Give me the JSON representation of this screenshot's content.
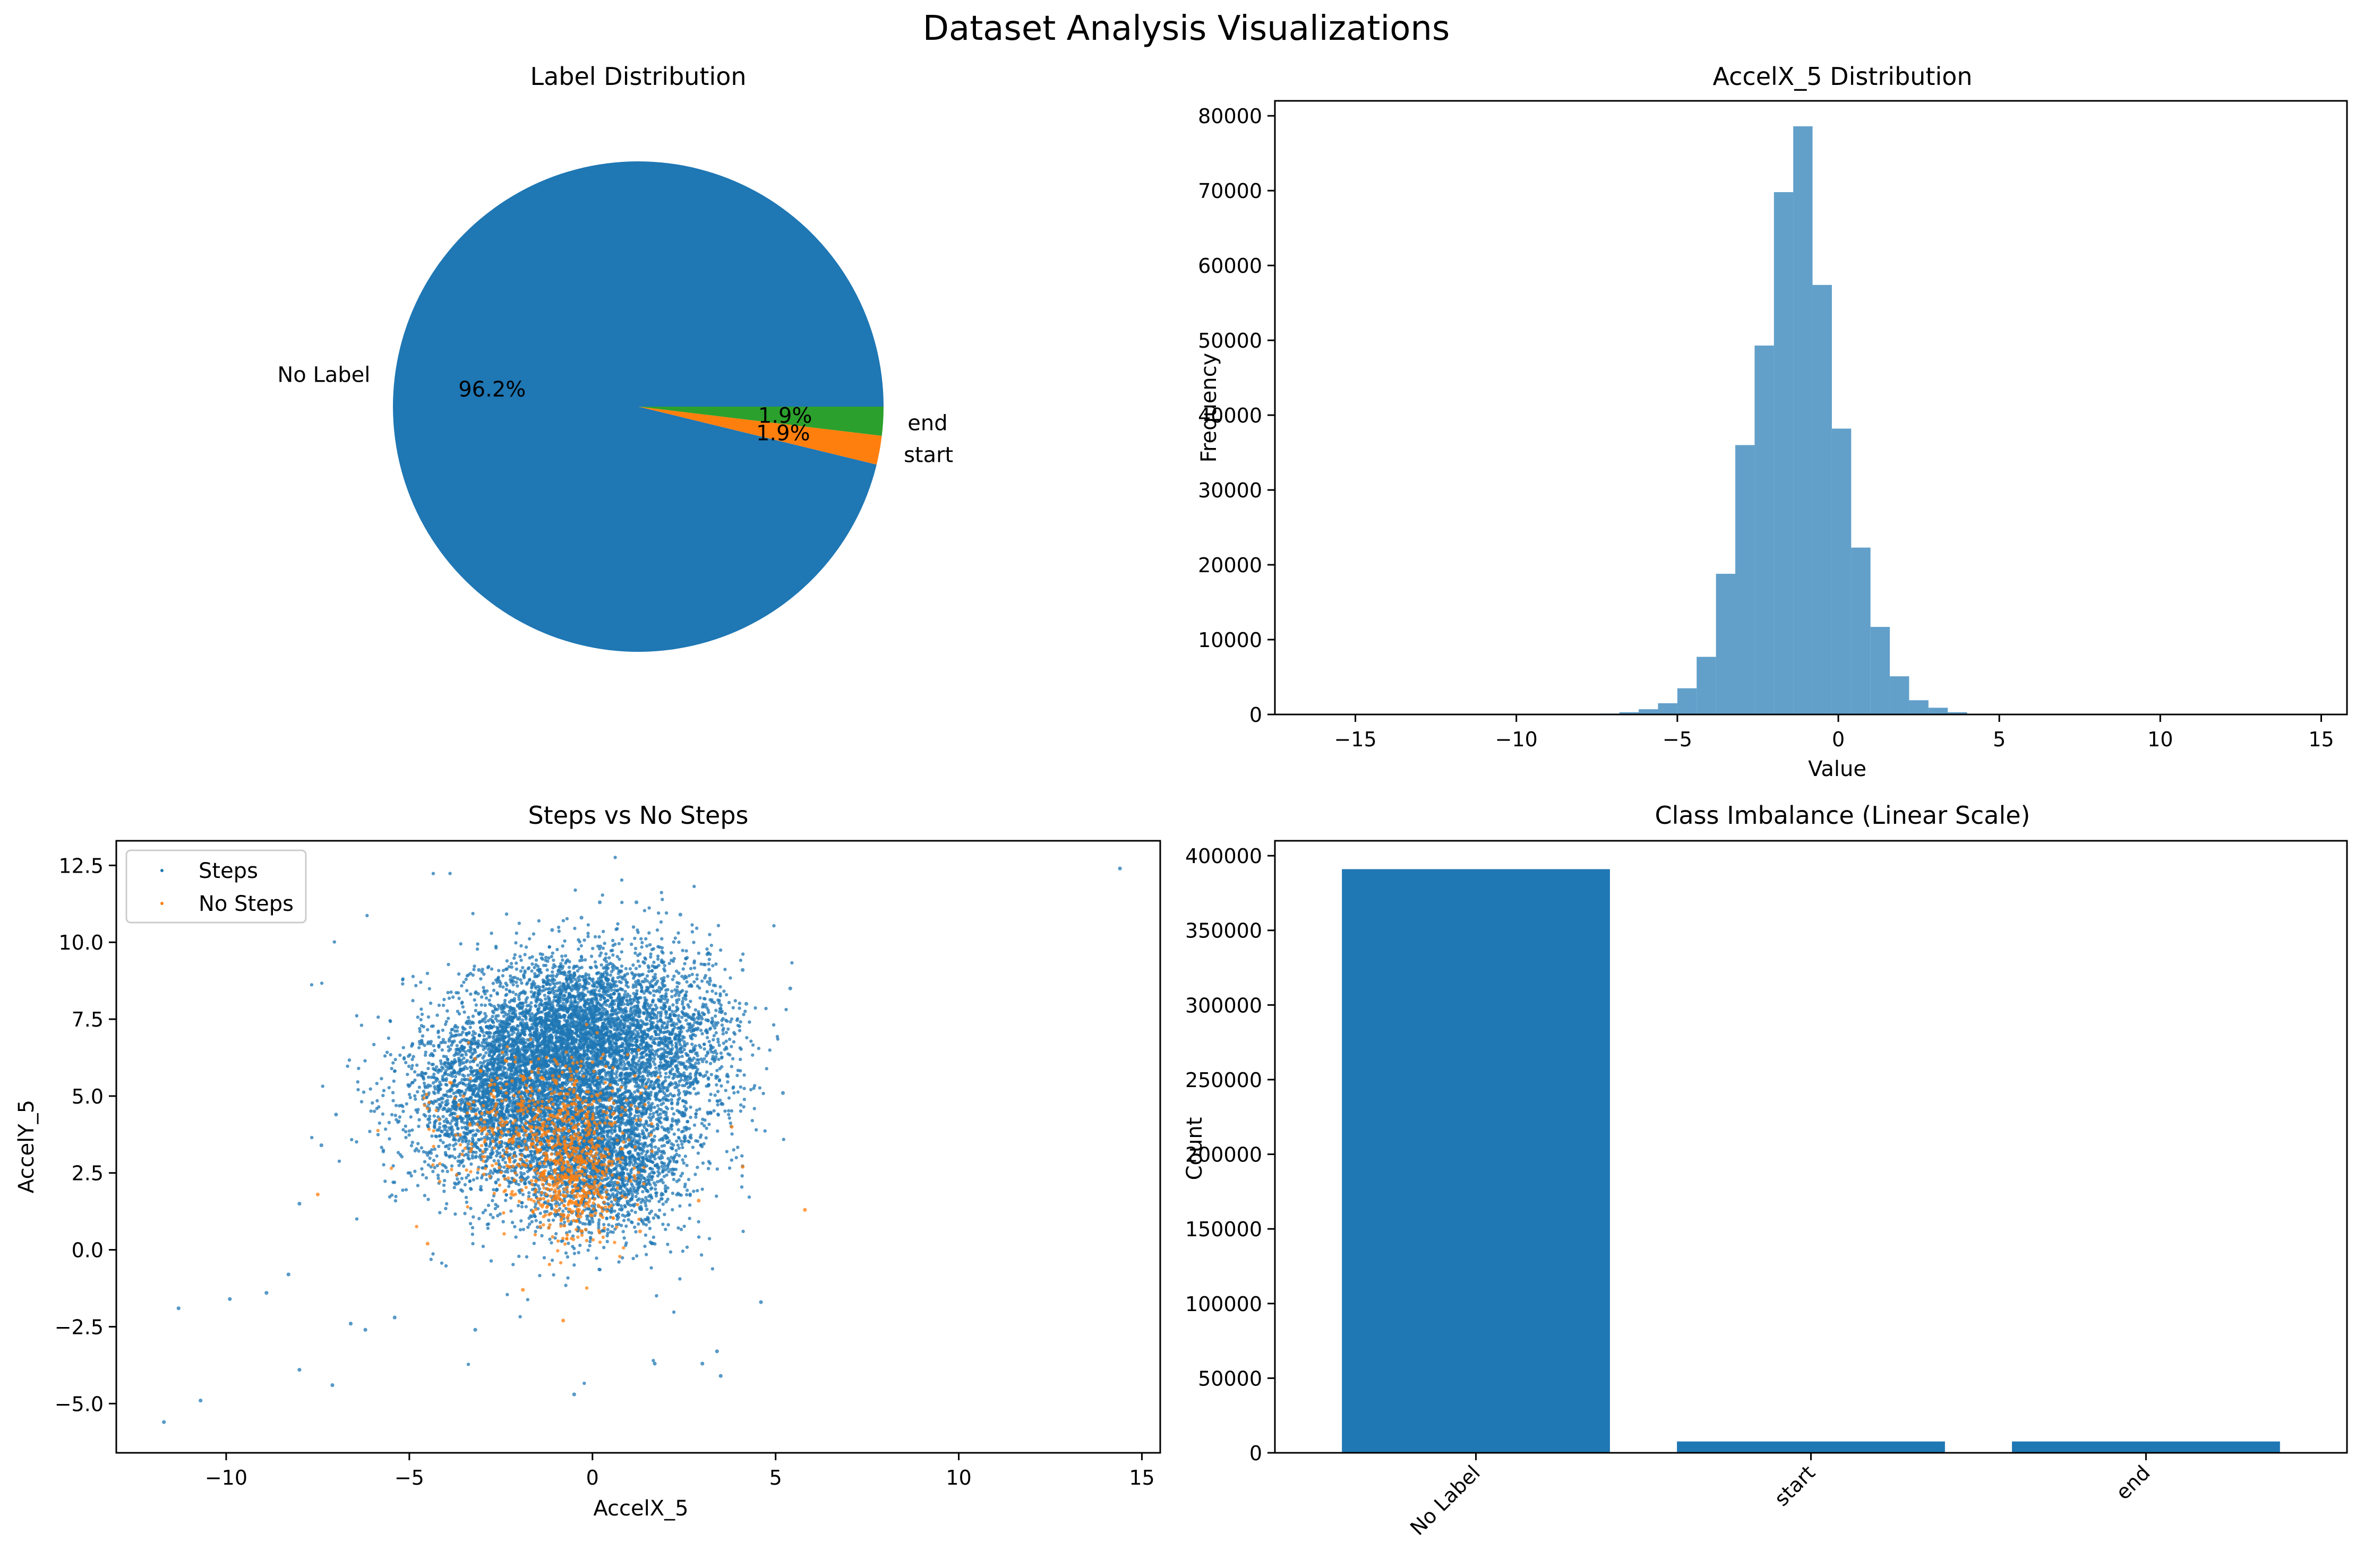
{
  "figure": {
    "suptitle": "Dataset Analysis Visualizations"
  },
  "chart_data": [
    {
      "type": "pie",
      "title": "Label Distribution",
      "labels": [
        "No Label",
        "start",
        "end"
      ],
      "values": [
        96.2,
        1.9,
        1.9
      ],
      "pct_labels": [
        "96.2%",
        "1.9%",
        "1.9%"
      ],
      "colors": [
        "#1f77b4",
        "#ff7f0e",
        "#2ca02c"
      ]
    },
    {
      "type": "histogram",
      "title": "AccelX_5 Distribution",
      "xlabel": "Value",
      "ylabel": "Frequency",
      "xlim": [
        -17.5,
        15.8
      ],
      "ylim": [
        0,
        82000
      ],
      "xticks": [
        -15,
        -10,
        -5,
        0,
        5,
        10,
        15
      ],
      "xtick_labels": [
        "−15",
        "−10",
        "−5",
        "0",
        "5",
        "10",
        "15"
      ],
      "yticks": [
        0,
        10000,
        20000,
        30000,
        40000,
        50000,
        60000,
        70000,
        80000
      ],
      "ytick_labels": [
        "0",
        "10000",
        "20000",
        "30000",
        "40000",
        "50000",
        "60000",
        "70000",
        "80000"
      ],
      "color": "#1f77b4",
      "bins": [
        {
          "x0": -8.0,
          "x1": -7.4,
          "count": 50
        },
        {
          "x0": -7.4,
          "x1": -6.8,
          "count": 120
        },
        {
          "x0": -6.8,
          "x1": -6.2,
          "count": 300
        },
        {
          "x0": -6.2,
          "x1": -5.6,
          "count": 700
        },
        {
          "x0": -5.6,
          "x1": -5.0,
          "count": 1500
        },
        {
          "x0": -5.0,
          "x1": -4.4,
          "count": 3500
        },
        {
          "x0": -4.4,
          "x1": -3.8,
          "count": 7700
        },
        {
          "x0": -3.8,
          "x1": -3.2,
          "count": 18800
        },
        {
          "x0": -3.2,
          "x1": -2.6,
          "count": 36000
        },
        {
          "x0": -2.6,
          "x1": -2.0,
          "count": 49300
        },
        {
          "x0": -2.0,
          "x1": -1.4,
          "count": 69800
        },
        {
          "x0": -1.4,
          "x1": -0.8,
          "count": 78600
        },
        {
          "x0": -0.8,
          "x1": -0.2,
          "count": 57400
        },
        {
          "x0": -0.2,
          "x1": 0.4,
          "count": 38200
        },
        {
          "x0": 0.4,
          "x1": 1.0,
          "count": 22300
        },
        {
          "x0": 1.0,
          "x1": 1.6,
          "count": 11700
        },
        {
          "x0": 1.6,
          "x1": 2.2,
          "count": 5100
        },
        {
          "x0": 2.2,
          "x1": 2.8,
          "count": 1900
        },
        {
          "x0": 2.8,
          "x1": 3.4,
          "count": 900
        },
        {
          "x0": 3.4,
          "x1": 4.0,
          "count": 300
        },
        {
          "x0": 4.0,
          "x1": 4.6,
          "count": 100
        }
      ]
    },
    {
      "type": "scatter",
      "title": "Steps vs No Steps",
      "xlabel": "AccelX_5",
      "ylabel": "AccelY_5",
      "xlim": [
        -13.0,
        15.5
      ],
      "ylim": [
        -6.6,
        13.3
      ],
      "xticks": [
        -10,
        -5,
        0,
        5,
        10,
        15
      ],
      "xtick_labels": [
        "−10",
        "−5",
        "0",
        "5",
        "10",
        "15"
      ],
      "yticks": [
        -5.0,
        -2.5,
        0.0,
        2.5,
        5.0,
        7.5,
        10.0,
        12.5
      ],
      "ytick_labels": [
        "−5.0",
        "−2.5",
        "0.0",
        "2.5",
        "5.0",
        "7.5",
        "10.0",
        "12.5"
      ],
      "legend_position": "top-left",
      "series": [
        {
          "name": "Steps",
          "color": "#1f77b4",
          "points": [
            [
              14.4,
              12.4
            ],
            [
              -11.7,
              -5.6
            ],
            [
              -10.7,
              -4.9
            ],
            [
              -11.3,
              -1.9
            ],
            [
              -9.9,
              -1.6
            ],
            [
              -8.9,
              -1.4
            ],
            [
              -8.3,
              -0.8
            ],
            [
              -8.0,
              -3.9
            ],
            [
              -7.1,
              -4.4
            ],
            [
              -8.0,
              1.5
            ],
            [
              -7.4,
              3.4
            ],
            [
              -7.0,
              4.4
            ],
            [
              -6.6,
              -2.4
            ],
            [
              -6.2,
              -2.6
            ],
            [
              -5.4,
              -2.2
            ],
            [
              3.0,
              -3.7
            ],
            [
              3.5,
              -4.1
            ],
            [
              3.4,
              -3.3
            ],
            [
              1.7,
              -3.7
            ],
            [
              -3.2,
              -2.6
            ],
            [
              -0.5,
              -4.7
            ],
            [
              4.6,
              -1.7
            ],
            [
              5.2,
              5.1
            ],
            [
              5.4,
              8.5
            ],
            [
              4.2,
              8.0
            ],
            [
              4.1,
              9.1
            ],
            [
              -3.1,
              9.1
            ],
            [
              -0.3,
              10.8
            ],
            [
              0.2,
              11.3
            ],
            [
              1.2,
              11.3
            ],
            [
              2.4,
              10.9
            ],
            [
              -1.1,
              10.4
            ]
          ],
          "cloud": [
            {
              "cx": -0.6,
              "cy": 7.0,
              "sx": 1.3,
              "sy": 1.2,
              "n": 3200
            },
            {
              "cx": -2.4,
              "cy": 4.8,
              "sx": 1.25,
              "sy": 1.3,
              "n": 2400
            },
            {
              "cx": 0.3,
              "cy": 3.1,
              "sx": 1.1,
              "sy": 1.3,
              "n": 2200
            },
            {
              "cx": 1.9,
              "cy": 6.6,
              "sx": 1.1,
              "sy": 1.6,
              "n": 1400
            },
            {
              "cx": -1.1,
              "cy": 5.2,
              "sx": 2.1,
              "sy": 2.4,
              "n": 1100
            }
          ]
        },
        {
          "name": "No Steps",
          "color": "#ff7f0e",
          "points": [
            [
              5.8,
              1.3
            ],
            [
              4.1,
              2.7
            ],
            [
              3.8,
              4.0
            ],
            [
              -7.5,
              1.8
            ],
            [
              -4.5,
              0.2
            ],
            [
              -1.9,
              -1.3
            ],
            [
              -0.8,
              -2.3
            ],
            [
              1.3,
              0.6
            ],
            [
              2.9,
              1.6
            ]
          ],
          "cloud": [
            {
              "cx": -0.5,
              "cy": 2.5,
              "sx": 0.75,
              "sy": 1.1,
              "n": 550
            },
            {
              "cx": -2.0,
              "cy": 3.8,
              "sx": 1.1,
              "sy": 1.1,
              "n": 300
            },
            {
              "cx": -0.7,
              "cy": 4.9,
              "sx": 0.9,
              "sy": 0.9,
              "n": 130
            }
          ]
        }
      ]
    },
    {
      "type": "bar",
      "title": "Class Imbalance (Linear Scale)",
      "xlabel": "",
      "ylabel": "Count",
      "categories": [
        "No Label",
        "start",
        "end"
      ],
      "values": [
        391000,
        7600,
        7600
      ],
      "ylim": [
        0,
        410000
      ],
      "yticks": [
        0,
        50000,
        100000,
        150000,
        200000,
        250000,
        300000,
        350000,
        400000
      ],
      "ytick_labels": [
        "0",
        "50000",
        "100000",
        "150000",
        "200000",
        "250000",
        "300000",
        "350000",
        "400000"
      ],
      "color": "#1f77b4"
    }
  ]
}
